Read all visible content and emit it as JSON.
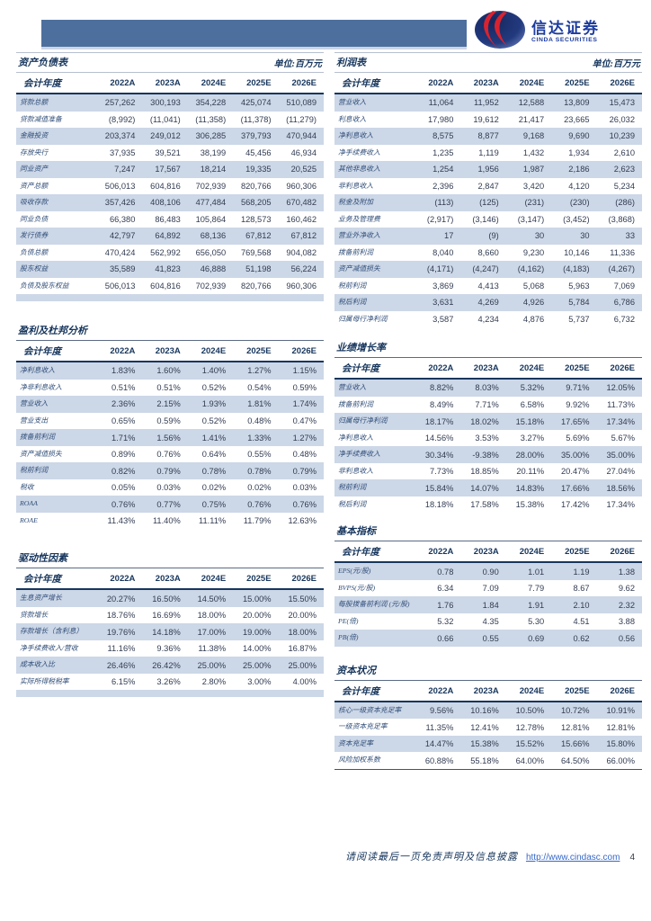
{
  "brand": {
    "name_cn": "信达证券",
    "name_en": "CINDA SECURITIES",
    "logo_colors": {
      "globe_navy": "#1b2f72",
      "swoosh_red": "#d8232f",
      "text_blue": "#1d3c9e"
    }
  },
  "banner": {
    "color": "#4d6f9d"
  },
  "columns_header": [
    "会计年度",
    "2022A",
    "2023A",
    "2024E",
    "2025E",
    "2026E"
  ],
  "tables": {
    "balance_sheet": {
      "title": "资产负债表",
      "unit": "单位:百万元",
      "columns": [
        "会计年度",
        "2022A",
        "2023A",
        "2024E",
        "2025E",
        "2026E"
      ],
      "rows": [
        [
          "贷款总额",
          "257,262",
          "300,193",
          "354,228",
          "425,074",
          "510,089"
        ],
        [
          "贷款减值准备",
          "(8,992)",
          "(11,041)",
          "(11,358)",
          "(11,378)",
          "(11,279)"
        ],
        [
          "金融投资",
          "203,374",
          "249,012",
          "306,285",
          "379,793",
          "470,944"
        ],
        [
          "存放央行",
          "37,935",
          "39,521",
          "38,199",
          "45,456",
          "46,934"
        ],
        [
          "同业资产",
          "7,247",
          "17,567",
          "18,214",
          "19,335",
          "20,525"
        ],
        [
          "资产总额",
          "506,013",
          "604,816",
          "702,939",
          "820,766",
          "960,306"
        ],
        [
          "吸收存款",
          "357,426",
          "408,106",
          "477,484",
          "568,205",
          "670,482"
        ],
        [
          "同业负债",
          "66,380",
          "86,483",
          "105,864",
          "128,573",
          "160,462"
        ],
        [
          "发行债券",
          "42,797",
          "64,892",
          "68,136",
          "67,812",
          "67,812"
        ],
        [
          "负债总额",
          "470,424",
          "562,992",
          "656,050",
          "769,568",
          "904,082"
        ],
        [
          "股东权益",
          "35,589",
          "41,823",
          "46,888",
          "51,198",
          "56,224"
        ],
        [
          "负债及股东权益",
          "506,013",
          "604,816",
          "702,939",
          "820,766",
          "960,306"
        ],
        [
          "",
          "",
          "",
          "",
          "",
          ""
        ]
      ]
    },
    "income_statement": {
      "title": "利润表",
      "unit": "单位:百万元",
      "columns": [
        "会计年度",
        "2022A",
        "2023A",
        "2024E",
        "2025E",
        "2026E"
      ],
      "rows": [
        [
          "营业收入",
          "11,064",
          "11,952",
          "12,588",
          "13,809",
          "15,473"
        ],
        [
          "利息收入",
          "17,980",
          "19,612",
          "21,417",
          "23,665",
          "26,032"
        ],
        [
          "净利息收入",
          "8,575",
          "8,877",
          "9,168",
          "9,690",
          "10,239"
        ],
        [
          "净手续费收入",
          "1,235",
          "1,119",
          "1,432",
          "1,934",
          "2,610"
        ],
        [
          "其他非息收入",
          "1,254",
          "1,956",
          "1,987",
          "2,186",
          "2,623"
        ],
        [
          "非利息收入",
          "2,396",
          "2,847",
          "3,420",
          "4,120",
          "5,234"
        ],
        [
          "税金及附加",
          "(113)",
          "(125)",
          "(231)",
          "(230)",
          "(286)"
        ],
        [
          "业务及管理费",
          "(2,917)",
          "(3,146)",
          "(3,147)",
          "(3,452)",
          "(3,868)"
        ],
        [
          "营业外净收入",
          "17",
          "(9)",
          "30",
          "30",
          "33"
        ],
        [
          "拨备前利润",
          "8,040",
          "8,660",
          "9,230",
          "10,146",
          "11,336"
        ],
        [
          "资产减值损失",
          "(4,171)",
          "(4,247)",
          "(4,162)",
          "(4,183)",
          "(4,267)"
        ],
        [
          "税前利润",
          "3,869",
          "4,413",
          "5,068",
          "5,963",
          "7,069"
        ],
        [
          "税后利润",
          "3,631",
          "4,269",
          "4,926",
          "5,784",
          "6,786"
        ],
        [
          "归属母行净利润",
          "3,587",
          "4,234",
          "4,876",
          "5,737",
          "6,732"
        ]
      ]
    },
    "dupont": {
      "title": "盈利及杜邦分析",
      "unit": "",
      "columns": [
        "会计年度",
        "2022A",
        "2023A",
        "2024E",
        "2025E",
        "2026E"
      ],
      "rows": [
        [
          "净利息收入",
          "1.83%",
          "1.60%",
          "1.40%",
          "1.27%",
          "1.15%"
        ],
        [
          "净非利息收入",
          "0.51%",
          "0.51%",
          "0.52%",
          "0.54%",
          "0.59%"
        ],
        [
          "营业收入",
          "2.36%",
          "2.15%",
          "1.93%",
          "1.81%",
          "1.74%"
        ],
        [
          "营业支出",
          "0.65%",
          "0.59%",
          "0.52%",
          "0.48%",
          "0.47%"
        ],
        [
          "拨备前利润",
          "1.71%",
          "1.56%",
          "1.41%",
          "1.33%",
          "1.27%"
        ],
        [
          "资产减值损失",
          "0.89%",
          "0.76%",
          "0.64%",
          "0.55%",
          "0.48%"
        ],
        [
          "税前利润",
          "0.82%",
          "0.79%",
          "0.78%",
          "0.78%",
          "0.79%"
        ],
        [
          "税收",
          "0.05%",
          "0.03%",
          "0.02%",
          "0.02%",
          "0.03%"
        ],
        [
          "ROAA",
          "0.76%",
          "0.77%",
          "0.75%",
          "0.76%",
          "0.76%"
        ],
        [
          "ROAE",
          "11.43%",
          "11.40%",
          "11.11%",
          "11.79%",
          "12.63%"
        ]
      ]
    },
    "growth": {
      "title": "业绩增长率",
      "unit": "",
      "columns": [
        "会计年度",
        "2022A",
        "2023A",
        "2024E",
        "2025E",
        "2026E"
      ],
      "rows": [
        [
          "营业收入",
          "8.82%",
          "8.03%",
          "5.32%",
          "9.71%",
          "12.05%"
        ],
        [
          "拨备前利润",
          "8.49%",
          "7.71%",
          "6.58%",
          "9.92%",
          "11.73%"
        ],
        [
          "归属母行净利润",
          "18.17%",
          "18.02%",
          "15.18%",
          "17.65%",
          "17.34%"
        ],
        [
          "净利息收入",
          "14.56%",
          "3.53%",
          "3.27%",
          "5.69%",
          "5.67%"
        ],
        [
          "净手续费收入",
          "30.34%",
          "-9.38%",
          "28.00%",
          "35.00%",
          "35.00%"
        ],
        [
          "非利息收入",
          "7.73%",
          "18.85%",
          "20.11%",
          "20.47%",
          "27.04%"
        ],
        [
          "税前利润",
          "15.84%",
          "14.07%",
          "14.83%",
          "17.66%",
          "18.56%"
        ],
        [
          "税后利润",
          "18.18%",
          "17.58%",
          "15.38%",
          "17.42%",
          "17.34%"
        ]
      ]
    },
    "basic": {
      "title": "基本指标",
      "unit": "",
      "columns": [
        "会计年度",
        "2022A",
        "2023A",
        "2024E",
        "2025E",
        "2026E"
      ],
      "rows": [
        [
          "EPS(元/股)",
          "0.78",
          "0.90",
          "1.01",
          "1.19",
          "1.38"
        ],
        [
          "BVPS(元/股)",
          "6.34",
          "7.09",
          "7.79",
          "8.67",
          "9.62"
        ],
        [
          "每股拨备前利润 (元/股)",
          "1.76",
          "1.84",
          "1.91",
          "2.10",
          "2.32"
        ],
        [
          "PE(倍)",
          "5.32",
          "4.35",
          "5.30",
          "4.51",
          "3.88"
        ],
        [
          "PB(倍)",
          "0.66",
          "0.55",
          "0.69",
          "0.62",
          "0.56"
        ]
      ]
    },
    "drivers": {
      "title": "驱动性因素",
      "unit": "",
      "columns": [
        "会计年度",
        "2022A",
        "2023A",
        "2024E",
        "2025E",
        "2026E"
      ],
      "rows": [
        [
          "生息资产增长",
          "20.27%",
          "16.50%",
          "14.50%",
          "15.00%",
          "15.50%"
        ],
        [
          "贷款增长",
          "18.76%",
          "16.69%",
          "18.00%",
          "20.00%",
          "20.00%"
        ],
        [
          "存款增长（含利息）",
          "19.76%",
          "14.18%",
          "17.00%",
          "19.00%",
          "18.00%"
        ],
        [
          "净手续费收入/营收",
          "11.16%",
          "9.36%",
          "11.38%",
          "14.00%",
          "16.87%"
        ],
        [
          "成本收入比",
          "26.46%",
          "26.42%",
          "25.00%",
          "25.00%",
          "25.00%"
        ],
        [
          "实际所得税税率",
          "6.15%",
          "3.26%",
          "2.80%",
          "3.00%",
          "4.00%"
        ],
        [
          "",
          "",
          "",
          "",
          "",
          ""
        ]
      ]
    },
    "capital": {
      "title": "资本状况",
      "unit": "",
      "columns": [
        "会计年度",
        "2022A",
        "2023A",
        "2024E",
        "2025E",
        "2026E"
      ],
      "rows": [
        [
          "核心一级资本充足率",
          "9.56%",
          "10.16%",
          "10.50%",
          "10.72%",
          "10.91%"
        ],
        [
          "一级资本充足率",
          "11.35%",
          "12.41%",
          "12.78%",
          "12.81%",
          "12.81%"
        ],
        [
          "资本充足率",
          "14.47%",
          "15.38%",
          "15.52%",
          "15.66%",
          "15.80%"
        ],
        [
          "风险加权系数",
          "60.88%",
          "55.18%",
          "64.00%",
          "64.50%",
          "66.00%"
        ]
      ]
    }
  },
  "footer": {
    "disclaimer": "请阅读最后一页免责声明及信息披露",
    "link": "http://www.cindasc.com",
    "page_number": "4"
  }
}
